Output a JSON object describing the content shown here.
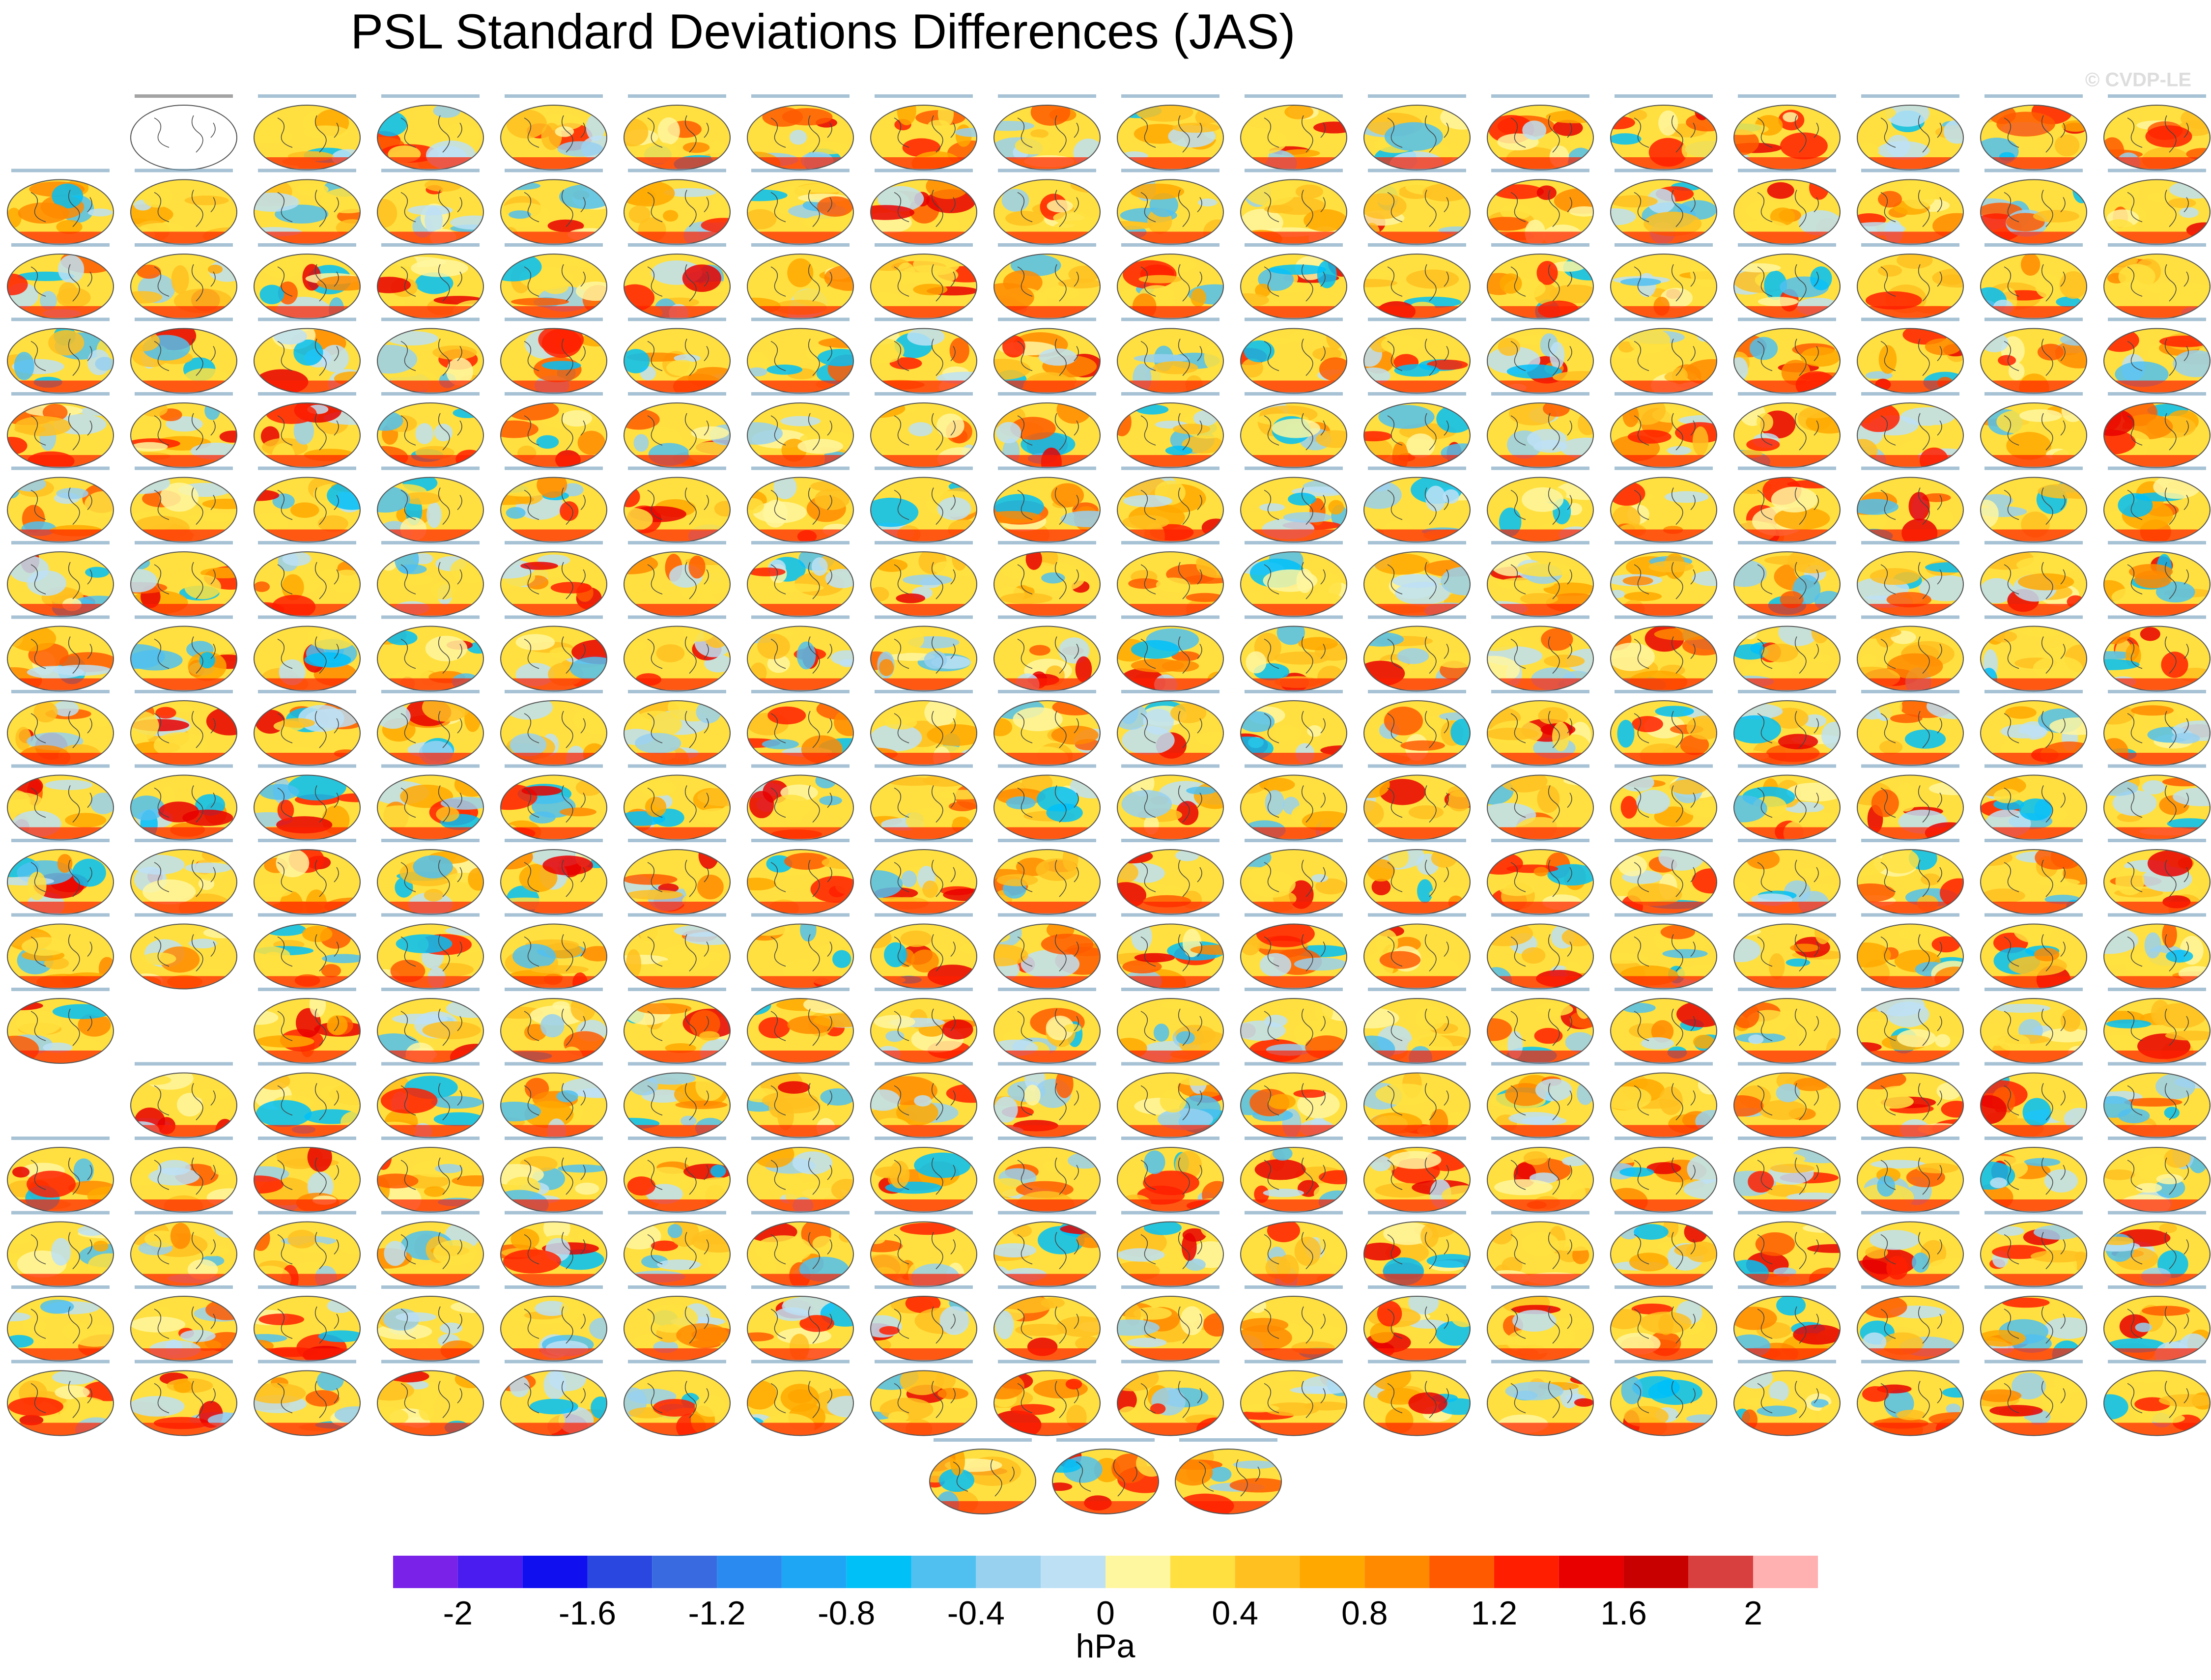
{
  "chart_data": {
    "type": "colorbar",
    "title": "PSL Standard Deviations Differences (JAS)",
    "watermark": "© CVDP-LE",
    "xlabel": "hPa",
    "xlim": [
      -2.2,
      2.2
    ],
    "xticks": [
      -2,
      -1.6,
      -1.2,
      -0.8,
      -0.4,
      0,
      0.4,
      0.8,
      1.2,
      1.6,
      2
    ],
    "colors": [
      "#7b22e8",
      "#4a1cf0",
      "#0f0ff0",
      "#2a48e0",
      "#3a6ae0",
      "#2a8af0",
      "#1ea6f5",
      "#00c0f8",
      "#50c0f0",
      "#98d0f0",
      "#bde0f5",
      "#fff6a0",
      "#ffe040",
      "#ffc020",
      "#ffa800",
      "#ff8a00",
      "#ff5a00",
      "#ff1e00",
      "#e80000",
      "#c80000",
      "#d84040",
      "#ffb0b0"
    ]
  }
}
